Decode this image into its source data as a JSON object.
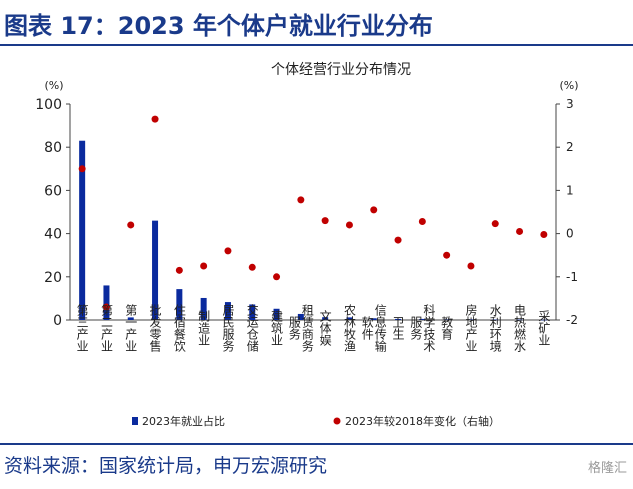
{
  "figure_title": "图表 17：2023 年个体户就业行业分布",
  "source_text": "资料来源：国家统计局，申万宏源研究",
  "watermark_text": "格隆汇",
  "chart_data": {
    "type": "bar",
    "title": "个体经营行业分布情况",
    "categories": [
      "第三产业",
      "第二产业",
      "第一产业",
      "批发零售",
      "住宿餐饮",
      "制造业",
      "居民服务",
      "交运仓储",
      "建筑业",
      "租赁商务服务",
      "文体娱",
      "农林牧渔",
      "信息传输软件",
      "卫生",
      "科学技术服务",
      "教育",
      "房地产业",
      "水利环境",
      "电热燃水",
      "采矿业"
    ],
    "series": [
      {
        "name": "2023年就业占比",
        "kind": "bar",
        "axis": "left",
        "color": "#0a2a9e",
        "values": [
          83,
          16,
          1.2,
          46,
          14.3,
          10.2,
          8.3,
          7.2,
          5.2,
          2.8,
          1.3,
          1.2,
          0.8,
          0.5,
          0.5,
          0.3,
          0.3,
          0.2,
          0.2,
          0.1
        ]
      },
      {
        "name": "2023年较2018年变化（右轴）",
        "kind": "scatter",
        "axis": "right",
        "color": "#c00000",
        "values": [
          1.5,
          -1.7,
          0.2,
          2.65,
          -0.85,
          -0.75,
          -0.4,
          -0.78,
          -1.0,
          0.78,
          0.3,
          0.2,
          0.55,
          -0.15,
          0.28,
          -0.5,
          -0.75,
          0.23,
          0.05,
          -0.02
        ]
      }
    ],
    "left_axis": {
      "unit": "(%)",
      "ylim": [
        0,
        100
      ],
      "ticks": [
        0,
        20,
        40,
        60,
        80,
        100
      ]
    },
    "right_axis": {
      "unit": "(%)",
      "ylim": [
        -2,
        3
      ],
      "ticks": [
        -2,
        -1,
        0,
        1,
        2,
        3
      ]
    },
    "legend_position": "bottom",
    "grid": false
  }
}
